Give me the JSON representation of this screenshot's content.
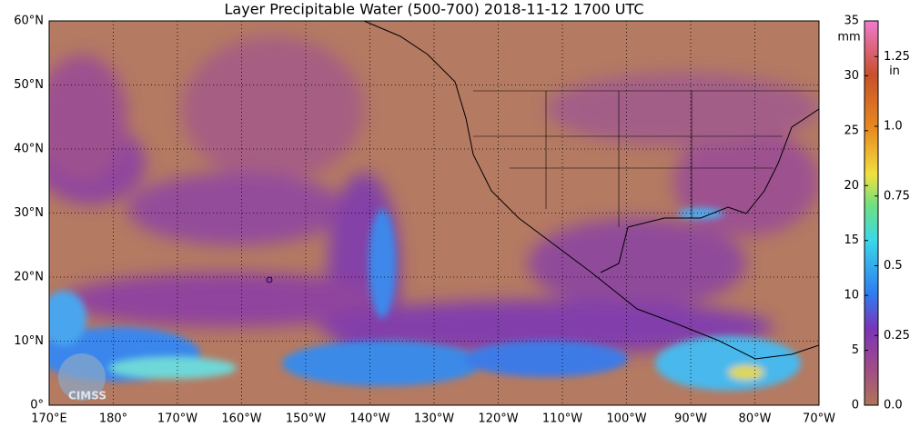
{
  "title": "Layer Precipitable Water (500-700)  2018-11-12 1700 UTC",
  "map": {
    "xlim": [
      170,
      290
    ],
    "ylim": [
      0,
      60
    ],
    "xticks": [
      {
        "value": 170,
        "label": "170°E"
      },
      {
        "value": 180,
        "label": "180°"
      },
      {
        "value": 190,
        "label": "170°W"
      },
      {
        "value": 200,
        "label": "160°W"
      },
      {
        "value": 210,
        "label": "150°W"
      },
      {
        "value": 220,
        "label": "140°W"
      },
      {
        "value": 230,
        "label": "130°W"
      },
      {
        "value": 240,
        "label": "120°W"
      },
      {
        "value": 250,
        "label": "110°W"
      },
      {
        "value": 260,
        "label": "100°W"
      },
      {
        "value": 270,
        "label": "90°W"
      },
      {
        "value": 280,
        "label": "80°W"
      },
      {
        "value": 290,
        "label": "70°W"
      }
    ],
    "yticks": [
      {
        "value": 0,
        "label": "0°"
      },
      {
        "value": 10,
        "label": "10°N"
      },
      {
        "value": 20,
        "label": "20°N"
      },
      {
        "value": 30,
        "label": "30°N"
      },
      {
        "value": 40,
        "label": "40°N"
      },
      {
        "value": 50,
        "label": "50°N"
      },
      {
        "value": 60,
        "label": "60°N"
      }
    ],
    "logo": "CIMSS"
  },
  "colorbar": {
    "mm_label": "mm",
    "in_label": "in",
    "lim": [
      0,
      35
    ],
    "mm_ticks": [
      0,
      5,
      10,
      15,
      20,
      25,
      30,
      35
    ],
    "in_ticks": [
      {
        "value": 0,
        "label": "0.0"
      },
      0.25,
      0.5,
      0.75,
      {
        "value": 1,
        "label": "1.0"
      },
      1.25
    ]
  }
}
